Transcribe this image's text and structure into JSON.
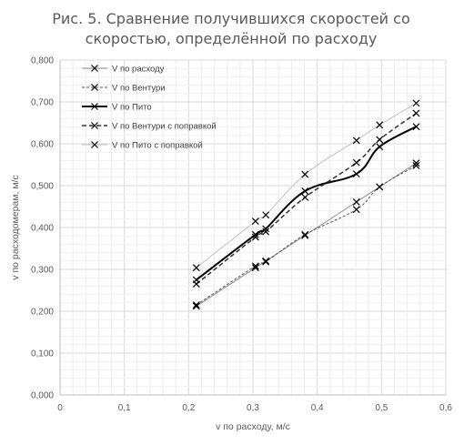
{
  "chart_data": {
    "type": "line",
    "title_lines": [
      "Рис. 5. Сравнение получившихся скоростей со",
      "скоростью, определённой по расходу"
    ],
    "xlabel": "v по расходу, м/с",
    "ylabel": "v по расходомерам, м/с",
    "xlim": [
      0,
      0.6
    ],
    "ylim": [
      0,
      0.8
    ],
    "x_ticks": [
      0,
      0.1,
      0.2,
      0.3,
      0.4,
      0.5,
      0.6
    ],
    "x_tick_labels": [
      "0",
      "0,1",
      "0,2",
      "0,3",
      "0,4",
      "0,5",
      "0,6"
    ],
    "y_ticks": [
      0,
      0.1,
      0.2,
      0.3,
      0.4,
      0.5,
      0.6,
      0.7,
      0.8
    ],
    "y_tick_labels": [
      "0,000",
      "0,100",
      "0,200",
      "0,300",
      "0,400",
      "0,500",
      "0,600",
      "0,700",
      "0,800"
    ],
    "grid": true,
    "legend_position": "top-left-inside",
    "x": [
      0.212,
      0.304,
      0.32,
      0.381,
      0.461,
      0.497,
      0.554
    ],
    "series": [
      {
        "name": "V по расходу",
        "color": "#8c8c8c",
        "dash": "",
        "width": 1,
        "values": [
          0.212,
          0.304,
          0.32,
          0.381,
          0.461,
          0.497,
          0.554
        ]
      },
      {
        "name": "V по Вентури",
        "color": "#555555",
        "dash": "3,2",
        "width": 1,
        "values": [
          0.215,
          0.308,
          0.318,
          0.383,
          0.443,
          0.497,
          0.548
        ]
      },
      {
        "name": "V по Пито",
        "color": "#000000",
        "dash": "",
        "width": 2,
        "values": [
          0.275,
          0.383,
          0.397,
          0.487,
          0.528,
          0.593,
          0.641
        ]
      },
      {
        "name": "V по Вентури с поправкой",
        "color": "#333333",
        "dash": "5,3",
        "width": 1.5,
        "values": [
          0.265,
          0.377,
          0.39,
          0.472,
          0.555,
          0.61,
          0.673
        ]
      },
      {
        "name": "V по Пито с поправкой",
        "color": "#bfbfbf",
        "dash": "",
        "width": 1,
        "values": [
          0.304,
          0.415,
          0.43,
          0.527,
          0.608,
          0.645,
          0.697
        ]
      }
    ]
  }
}
